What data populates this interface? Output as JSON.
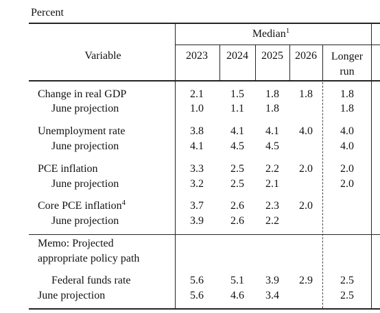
{
  "header": {
    "unit": "Percent",
    "variable": "Variable",
    "median": "Median",
    "median_note": "1",
    "years": [
      "2023",
      "2024",
      "2025",
      "2026"
    ],
    "longer_run": [
      "Longer",
      "run"
    ]
  },
  "rows": [
    {
      "label": "Change in real GDP",
      "values": [
        "2.1",
        "1.5",
        "1.8",
        "1.8",
        "1.8"
      ]
    },
    {
      "label": "June projection",
      "values": [
        "1.0",
        "1.1",
        "1.8",
        null,
        "1.8"
      ]
    },
    {
      "label": "Unemployment rate",
      "values": [
        "3.8",
        "4.1",
        "4.1",
        "4.0",
        "4.0"
      ]
    },
    {
      "label": "June projection",
      "values": [
        "4.1",
        "4.5",
        "4.5",
        null,
        "4.0"
      ]
    },
    {
      "label": "PCE inflation",
      "values": [
        "3.3",
        "2.5",
        "2.2",
        "2.0",
        "2.0"
      ]
    },
    {
      "label": "June projection",
      "values": [
        "3.2",
        "2.5",
        "2.1",
        null,
        "2.0"
      ]
    },
    {
      "label": "Core PCE inflation",
      "note": "4",
      "values": [
        "3.7",
        "2.6",
        "2.3",
        "2.0",
        null
      ]
    },
    {
      "label": "June projection",
      "values": [
        "3.9",
        "2.6",
        "2.2",
        null,
        null
      ]
    },
    {
      "label": [
        "Memo: Projected",
        "appropriate policy path"
      ],
      "values": [
        null,
        null,
        null,
        null,
        null
      ]
    },
    {
      "label": "Federal funds rate",
      "values": [
        "5.6",
        "5.1",
        "3.9",
        "2.9",
        "2.5"
      ]
    },
    {
      "label": "June projection",
      "values": [
        "5.6",
        "4.6",
        "3.4",
        null,
        "2.5"
      ]
    }
  ]
}
